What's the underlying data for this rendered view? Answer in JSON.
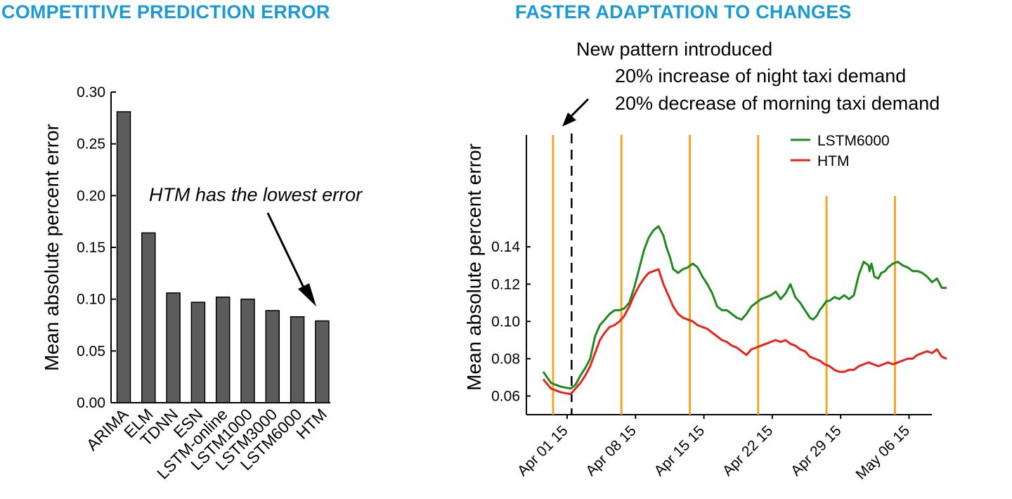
{
  "titles": {
    "left": "COMPETITIVE PREDICTION ERROR",
    "right": "FASTER ADAPTATION TO CHANGES"
  },
  "colors": {
    "title": "#1b9ad6",
    "bar": "#5c5c5c",
    "lstm": "#1e8a1e",
    "htm": "#e8231e",
    "change_lines": "#f5a623"
  },
  "chart_data": [
    {
      "type": "bar",
      "title": "COMPETITIVE PREDICTION ERROR",
      "categories": [
        "ARIMA",
        "ELM",
        "TDNN",
        "ESN",
        "LSTM-online",
        "LSTM1000",
        "LSTM3000",
        "LSTM6000",
        "HTM"
      ],
      "values": [
        0.281,
        0.164,
        0.106,
        0.097,
        0.102,
        0.1,
        0.089,
        0.083,
        0.079
      ],
      "ylabel": "Mean absolute percent error",
      "xlabel": "",
      "ylim": [
        0,
        0.3
      ],
      "yticks": [
        "0.00",
        "0.05",
        "0.10",
        "0.15",
        "0.20",
        "0.25",
        "0.30"
      ],
      "annotation": "HTM has the lowest error",
      "grid": false
    },
    {
      "type": "line",
      "title": "FASTER ADAPTATION TO CHANGES",
      "ylabel": "Mean absolute percent error",
      "xlabel": "",
      "ylim": [
        0.05,
        0.2
      ],
      "yticks": [
        "0.06",
        "0.08",
        "0.10",
        "0.12",
        "0.14"
      ],
      "xticks": [
        "Apr 01 15",
        "Apr 08 15",
        "Apr 15 15",
        "Apr 22 15",
        "Apr 29 15",
        "May 06 15"
      ],
      "annotation": [
        "New pattern introduced",
        "20% increase of night taxi demand",
        "20% decrease of morning taxi demand"
      ],
      "legend": [
        "LSTM6000",
        "HTM"
      ],
      "legend_position": "top-right",
      "change_line_days": [
        -1.3,
        5.7,
        12.7,
        19.7,
        26.7,
        33.7
      ],
      "pattern_change_day": 0.6,
      "series": [
        {
          "name": "LSTM6000",
          "x_days": [
            -2.3,
            -1.5,
            -0.5,
            0.5,
            1.0,
            1.5,
            2.0,
            2.5,
            3.0,
            3.5,
            4.0,
            4.5,
            5.0,
            5.5,
            6.0,
            6.5,
            7.0,
            7.5,
            8.0,
            8.5,
            9.0,
            9.5,
            10.0,
            10.3,
            10.7,
            11.0,
            11.5,
            12.0,
            12.5,
            13.0,
            13.5,
            14.0,
            14.5,
            15.0,
            15.5,
            16.0,
            16.5,
            17.0,
            17.5,
            18.0,
            18.5,
            19.0,
            19.5,
            20.0,
            20.5,
            21.0,
            21.5,
            22.0,
            22.5,
            23.0,
            23.5,
            24.0,
            24.5,
            25.0,
            25.3,
            25.7,
            26.0,
            26.3,
            26.7,
            27.0,
            27.5,
            28.0,
            28.5,
            29.0,
            29.5,
            30.0,
            30.5,
            31.0,
            31.1,
            31.3,
            31.6,
            32.0,
            32.3,
            32.7,
            33.0,
            33.5,
            34.0,
            34.5,
            35.0,
            35.5,
            36.0,
            36.5,
            37.0,
            37.5,
            38.0,
            38.5,
            39.0
          ],
          "values": [
            0.073,
            0.067,
            0.065,
            0.064,
            0.066,
            0.071,
            0.075,
            0.08,
            0.092,
            0.098,
            0.101,
            0.104,
            0.106,
            0.106,
            0.107,
            0.11,
            0.118,
            0.128,
            0.138,
            0.145,
            0.149,
            0.151,
            0.146,
            0.14,
            0.134,
            0.128,
            0.126,
            0.128,
            0.129,
            0.131,
            0.129,
            0.124,
            0.12,
            0.115,
            0.108,
            0.106,
            0.106,
            0.104,
            0.102,
            0.101,
            0.104,
            0.108,
            0.11,
            0.112,
            0.113,
            0.114,
            0.116,
            0.112,
            0.115,
            0.12,
            0.113,
            0.11,
            0.106,
            0.102,
            0.101,
            0.103,
            0.106,
            0.108,
            0.111,
            0.111,
            0.113,
            0.112,
            0.114,
            0.112,
            0.114,
            0.125,
            0.132,
            0.13,
            0.127,
            0.131,
            0.124,
            0.123,
            0.126,
            0.127,
            0.129,
            0.131,
            0.132,
            0.13,
            0.129,
            0.127,
            0.127,
            0.126,
            0.124,
            0.121,
            0.123,
            0.118,
            0.118
          ]
        },
        {
          "name": "HTM",
          "x_days": [
            -2.3,
            -1.5,
            -0.5,
            0.5,
            1.0,
            1.5,
            2.0,
            2.5,
            3.0,
            3.5,
            4.0,
            4.5,
            5.0,
            5.5,
            6.0,
            6.5,
            7.0,
            7.5,
            8.0,
            8.5,
            9.0,
            9.5,
            10.0,
            10.5,
            11.0,
            11.5,
            12.0,
            12.5,
            13.0,
            13.5,
            14.0,
            14.5,
            15.0,
            15.5,
            16.0,
            16.5,
            17.0,
            17.5,
            18.0,
            18.5,
            19.0,
            19.5,
            20.0,
            20.5,
            21.0,
            21.5,
            22.0,
            22.5,
            23.0,
            23.5,
            24.0,
            24.5,
            25.0,
            25.5,
            26.0,
            26.5,
            27.0,
            27.5,
            28.0,
            28.5,
            29.0,
            29.5,
            30.0,
            30.5,
            31.0,
            31.5,
            32.0,
            32.5,
            33.0,
            33.5,
            34.0,
            34.5,
            35.0,
            35.5,
            36.0,
            36.5,
            37.0,
            37.5,
            38.0,
            38.5,
            39.0
          ],
          "values": [
            0.069,
            0.064,
            0.062,
            0.061,
            0.064,
            0.067,
            0.071,
            0.076,
            0.083,
            0.09,
            0.094,
            0.097,
            0.098,
            0.1,
            0.103,
            0.108,
            0.114,
            0.119,
            0.123,
            0.126,
            0.127,
            0.128,
            0.12,
            0.114,
            0.108,
            0.104,
            0.102,
            0.101,
            0.1,
            0.098,
            0.097,
            0.096,
            0.094,
            0.092,
            0.09,
            0.089,
            0.087,
            0.086,
            0.084,
            0.082,
            0.085,
            0.086,
            0.087,
            0.088,
            0.089,
            0.09,
            0.089,
            0.09,
            0.088,
            0.087,
            0.085,
            0.084,
            0.081,
            0.08,
            0.079,
            0.077,
            0.076,
            0.074,
            0.073,
            0.073,
            0.074,
            0.074,
            0.076,
            0.077,
            0.078,
            0.077,
            0.076,
            0.077,
            0.078,
            0.077,
            0.078,
            0.079,
            0.08,
            0.08,
            0.082,
            0.083,
            0.084,
            0.083,
            0.085,
            0.081,
            0.08
          ]
        }
      ]
    }
  ]
}
